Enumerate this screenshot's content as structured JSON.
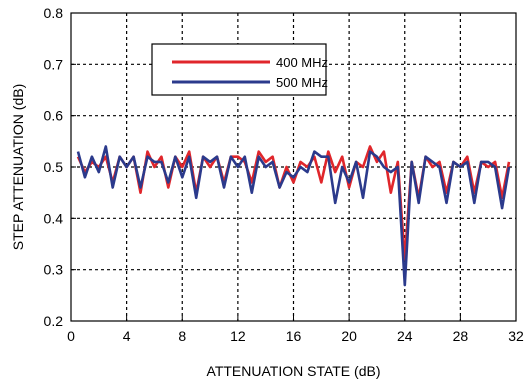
{
  "chart_data": {
    "type": "line",
    "xlabel": "ATTENUATION STATE (dB)",
    "ylabel": "STEP ATTENUATION (dB)",
    "xlim": [
      0,
      32
    ],
    "ylim": [
      0.2,
      0.8
    ],
    "x_ticks": [
      "0",
      "4",
      "8",
      "12",
      "16",
      "20",
      "24",
      "28",
      "32"
    ],
    "y_ticks": [
      "0.2",
      "0.3",
      "0.4",
      "0.5",
      "0.6",
      "0.7",
      "0.8"
    ],
    "grid": true,
    "legend_position": "top-center",
    "x": [
      0.5,
      1.0,
      1.5,
      2.0,
      2.5,
      3.0,
      3.5,
      4.0,
      4.5,
      5.0,
      5.5,
      6.0,
      6.5,
      7.0,
      7.5,
      8.0,
      8.5,
      9.0,
      9.5,
      10.0,
      10.5,
      11.0,
      11.5,
      12.0,
      12.5,
      13.0,
      13.5,
      14.0,
      14.5,
      15.0,
      15.5,
      16.0,
      16.5,
      17.0,
      17.5,
      18.0,
      18.5,
      19.0,
      19.5,
      20.0,
      20.5,
      21.0,
      21.5,
      22.0,
      22.5,
      23.0,
      23.5,
      24.0,
      24.5,
      25.0,
      25.5,
      26.0,
      26.5,
      27.0,
      27.5,
      28.0,
      28.5,
      29.0,
      29.5,
      30.0,
      30.5,
      31.0,
      31.5
    ],
    "series": [
      {
        "name": "400 MHz",
        "color": "#e0262b",
        "values": [
          0.52,
          0.49,
          0.51,
          0.5,
          0.52,
          0.47,
          0.52,
          0.5,
          0.52,
          0.45,
          0.53,
          0.5,
          0.52,
          0.46,
          0.52,
          0.5,
          0.53,
          0.45,
          0.52,
          0.5,
          0.52,
          0.47,
          0.52,
          0.52,
          0.51,
          0.47,
          0.53,
          0.51,
          0.52,
          0.46,
          0.5,
          0.47,
          0.51,
          0.5,
          0.52,
          0.47,
          0.53,
          0.49,
          0.52,
          0.46,
          0.51,
          0.5,
          0.54,
          0.51,
          0.53,
          0.45,
          0.51,
          0.32,
          0.51,
          0.44,
          0.52,
          0.5,
          0.51,
          0.45,
          0.51,
          0.5,
          0.52,
          0.45,
          0.51,
          0.5,
          0.51,
          0.44,
          0.51
        ]
      },
      {
        "name": "500 MHz",
        "color": "#2b3a8c",
        "values": [
          0.53,
          0.48,
          0.52,
          0.49,
          0.54,
          0.46,
          0.52,
          0.5,
          0.52,
          0.46,
          0.52,
          0.51,
          0.51,
          0.47,
          0.52,
          0.48,
          0.52,
          0.44,
          0.52,
          0.51,
          0.52,
          0.46,
          0.52,
          0.5,
          0.52,
          0.45,
          0.52,
          0.5,
          0.51,
          0.46,
          0.49,
          0.48,
          0.5,
          0.49,
          0.53,
          0.52,
          0.52,
          0.43,
          0.5,
          0.47,
          0.51,
          0.44,
          0.53,
          0.52,
          0.5,
          0.49,
          0.5,
          0.27,
          0.51,
          0.43,
          0.52,
          0.51,
          0.5,
          0.43,
          0.51,
          0.5,
          0.51,
          0.43,
          0.51,
          0.51,
          0.5,
          0.42,
          0.5
        ]
      }
    ]
  }
}
